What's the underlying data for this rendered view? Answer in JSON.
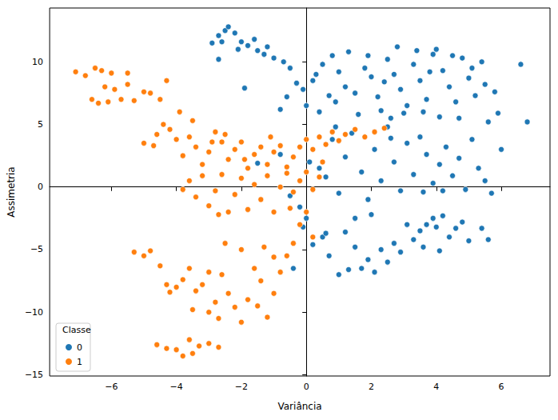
{
  "chart_data": {
    "type": "scatter",
    "x_label": "Variância",
    "y_label": "Assimetria",
    "legend_title": "Classe",
    "legend": "lower left",
    "grid": false,
    "marker": "circle",
    "xlim": [
      -7.9,
      7.5
    ],
    "ylim": [
      -15.1,
      14.3
    ],
    "xticks": [
      {
        "value": -6,
        "label": "−6"
      },
      {
        "value": -4,
        "label": "−4"
      },
      {
        "value": -2,
        "label": "−2"
      },
      0,
      2,
      4,
      6
    ],
    "yticks": [
      {
        "value": -15,
        "label": "−15"
      },
      {
        "value": -10,
        "label": "−10"
      },
      {
        "value": -5,
        "label": "−5"
      },
      0,
      5,
      10
    ],
    "series": [
      {
        "name": "0",
        "color": "#1f77b4",
        "points": [
          [
            -2.5,
            12.5
          ],
          [
            -2.4,
            12.8
          ],
          [
            -2.2,
            12.3
          ],
          [
            -2.7,
            12.1
          ],
          [
            -2.0,
            11.6
          ],
          [
            -1.8,
            11.3
          ],
          [
            -1.5,
            10.9
          ],
          [
            -1.3,
            10.6
          ],
          [
            -1.0,
            10.3
          ],
          [
            -0.7,
            10.0
          ],
          [
            -2.6,
            11.6
          ],
          [
            -2.9,
            11.5
          ],
          [
            -1.6,
            11.8
          ],
          [
            -1.2,
            11.2
          ],
          [
            -2.1,
            11.0
          ],
          [
            -2.7,
            10.2
          ],
          [
            -0.5,
            9.5
          ],
          [
            -0.3,
            8.3
          ],
          [
            -0.1,
            7.8
          ],
          [
            0.2,
            8.5
          ],
          [
            0.5,
            9.8
          ],
          [
            0.8,
            10.5
          ],
          [
            1.0,
            9.2
          ],
          [
            1.2,
            8.0
          ],
          [
            1.5,
            7.5
          ],
          [
            1.3,
            10.8
          ],
          [
            1.8,
            9.5
          ],
          [
            2.0,
            8.8
          ],
          [
            2.2,
            7.2
          ],
          [
            2.5,
            10.2
          ],
          [
            2.7,
            9.0
          ],
          [
            2.9,
            7.8
          ],
          [
            3.1,
            6.5
          ],
          [
            3.3,
            9.8
          ],
          [
            3.5,
            8.5
          ],
          [
            3.7,
            7.0
          ],
          [
            3.9,
            10.6
          ],
          [
            4.0,
            11.0
          ],
          [
            4.2,
            9.3
          ],
          [
            4.4,
            8.0
          ],
          [
            4.6,
            6.8
          ],
          [
            4.8,
            10.3
          ],
          [
            5.0,
            8.7
          ],
          [
            5.2,
            7.3
          ],
          [
            5.4,
            10.0
          ],
          [
            5.5,
            8.2
          ],
          [
            5.8,
            7.6
          ],
          [
            0.0,
            6.5
          ],
          [
            0.4,
            6.0
          ],
          [
            0.9,
            6.8
          ],
          [
            1.6,
            5.8
          ],
          [
            2.3,
            6.1
          ],
          [
            2.6,
            5.5
          ],
          [
            3.0,
            5.9
          ],
          [
            3.6,
            6.0
          ],
          [
            4.1,
            5.6
          ],
          [
            4.7,
            5.5
          ],
          [
            0.3,
            9.0
          ],
          [
            0.7,
            7.3
          ],
          [
            1.9,
            10.5
          ],
          [
            2.4,
            8.4
          ],
          [
            3.4,
            10.9
          ],
          [
            4.5,
            10.5
          ],
          [
            3.8,
            9.2
          ],
          [
            2.8,
            11.2
          ],
          [
            5.1,
            9.5
          ],
          [
            -0.6,
            7.2
          ],
          [
            -0.8,
            6.2
          ],
          [
            5.6,
            5.2
          ],
          [
            5.9,
            5.9
          ],
          [
            6.6,
            9.8
          ],
          [
            6.8,
            5.2
          ],
          [
            -1.9,
            7.9
          ],
          [
            0.1,
            2.0
          ],
          [
            0.4,
            1.5
          ],
          [
            0.6,
            0.8
          ],
          [
            0.8,
            3.8
          ],
          [
            1.0,
            -0.5
          ],
          [
            1.2,
            2.4
          ],
          [
            1.4,
            4.3
          ],
          [
            1.7,
            1.2
          ],
          [
            1.9,
            -1.0
          ],
          [
            2.1,
            3.0
          ],
          [
            2.3,
            0.5
          ],
          [
            2.5,
            4.8
          ],
          [
            2.7,
            2.0
          ],
          [
            2.9,
            -0.3
          ],
          [
            3.1,
            3.5
          ],
          [
            3.3,
            1.0
          ],
          [
            3.5,
            4.0
          ],
          [
            3.7,
            2.6
          ],
          [
            3.9,
            0.3
          ],
          [
            4.1,
            1.8
          ],
          [
            4.3,
            3.2
          ],
          [
            4.5,
            0.9
          ],
          [
            4.7,
            2.3
          ],
          [
            4.9,
            -0.2
          ],
          [
            5.1,
            3.8
          ],
          [
            5.3,
            1.5
          ],
          [
            5.5,
            0.5
          ],
          [
            2.0,
            -2.2
          ],
          [
            1.5,
            -2.5
          ],
          [
            3.6,
            -0.4
          ],
          [
            4.2,
            -0.3
          ],
          [
            5.7,
            -0.5
          ],
          [
            6.0,
            3.0
          ],
          [
            0.9,
            4.8
          ],
          [
            2.6,
            3.9
          ],
          [
            -1.5,
            1.9
          ],
          [
            -0.8,
            2.6
          ],
          [
            -0.5,
            -0.7
          ],
          [
            -0.2,
            -1.6
          ],
          [
            0.0,
            -2.5
          ],
          [
            0.2,
            -4.6
          ],
          [
            0.5,
            -4.0
          ],
          [
            0.7,
            -5.5
          ],
          [
            1.0,
            -7.0
          ],
          [
            1.2,
            -3.6
          ],
          [
            1.5,
            -4.8
          ],
          [
            1.7,
            -6.5
          ],
          [
            1.9,
            -5.8
          ],
          [
            2.1,
            -6.8
          ],
          [
            2.3,
            -5.0
          ],
          [
            2.5,
            -6.0
          ],
          [
            2.7,
            -4.5
          ],
          [
            2.9,
            -5.2
          ],
          [
            3.1,
            -3.0
          ],
          [
            3.3,
            -4.2
          ],
          [
            3.5,
            -3.5
          ],
          [
            3.7,
            -3.0
          ],
          [
            3.9,
            -2.5
          ],
          [
            4.0,
            -3.2
          ],
          [
            4.2,
            -2.3
          ],
          [
            4.4,
            -4.0
          ],
          [
            4.6,
            -3.3
          ],
          [
            4.8,
            -2.8
          ],
          [
            5.0,
            -4.3
          ],
          [
            4.1,
            -5.1
          ],
          [
            3.6,
            -4.8
          ],
          [
            5.4,
            -3.3
          ],
          [
            5.6,
            -4.2
          ],
          [
            -0.4,
            -6.5
          ],
          [
            -0.1,
            -3.2
          ],
          [
            0.6,
            -3.7
          ],
          [
            1.3,
            -6.6
          ]
        ]
      },
      {
        "name": "1",
        "color": "#ff7f0e",
        "points": [
          [
            -7.1,
            9.2
          ],
          [
            -6.8,
            8.9
          ],
          [
            -6.5,
            9.5
          ],
          [
            -6.3,
            9.3
          ],
          [
            -6.0,
            9.1
          ],
          [
            -5.5,
            9.1
          ],
          [
            -6.6,
            7.0
          ],
          [
            -6.4,
            6.7
          ],
          [
            -6.1,
            6.8
          ],
          [
            -5.7,
            7.0
          ],
          [
            -5.3,
            6.9
          ],
          [
            -5.5,
            8.2
          ],
          [
            -5.0,
            7.6
          ],
          [
            -4.8,
            7.5
          ],
          [
            -4.5,
            7.0
          ],
          [
            -6.2,
            8.0
          ],
          [
            -5.9,
            7.8
          ],
          [
            -4.3,
            8.5
          ],
          [
            -5.0,
            3.5
          ],
          [
            -4.7,
            3.3
          ],
          [
            -4.4,
            5.0
          ],
          [
            -4.2,
            4.6
          ],
          [
            -4.0,
            3.8
          ],
          [
            -3.8,
            2.5
          ],
          [
            -3.6,
            4.0
          ],
          [
            -3.4,
            3.2
          ],
          [
            -3.2,
            1.8
          ],
          [
            -3.0,
            2.8
          ],
          [
            -2.8,
            4.4
          ],
          [
            -2.6,
            3.6
          ],
          [
            -2.4,
            2.2
          ],
          [
            -2.2,
            3.0
          ],
          [
            -2.0,
            3.6
          ],
          [
            -1.8,
            1.5
          ],
          [
            -1.6,
            2.6
          ],
          [
            -1.4,
            3.2
          ],
          [
            -1.2,
            1.8
          ],
          [
            -1.0,
            2.8
          ],
          [
            -0.8,
            3.3
          ],
          [
            -0.6,
            1.6
          ],
          [
            -0.4,
            2.4
          ],
          [
            -0.2,
            3.2
          ],
          [
            0.0,
            3.8
          ],
          [
            0.2,
            3.0
          ],
          [
            0.4,
            4.0
          ],
          [
            0.6,
            3.4
          ],
          [
            0.8,
            4.4
          ],
          [
            1.0,
            3.7
          ],
          [
            1.2,
            4.2
          ],
          [
            1.5,
            4.6
          ],
          [
            1.8,
            4.0
          ],
          [
            2.1,
            4.4
          ],
          [
            2.4,
            4.7
          ],
          [
            -3.9,
            6.0
          ],
          [
            -4.6,
            4.2
          ],
          [
            -3.5,
            5.3
          ],
          [
            -2.9,
            3.6
          ],
          [
            -2.5,
            4.2
          ],
          [
            -1.9,
            2.2
          ],
          [
            -1.1,
            4.0
          ],
          [
            -3.6,
            0.5
          ],
          [
            -3.4,
            -0.8
          ],
          [
            -3.2,
            0.9
          ],
          [
            -3.0,
            -1.5
          ],
          [
            -2.8,
            -0.3
          ],
          [
            -2.6,
            1.0
          ],
          [
            -2.4,
            -2.0
          ],
          [
            -2.2,
            -0.6
          ],
          [
            -2.0,
            0.7
          ],
          [
            -1.8,
            -1.8
          ],
          [
            -1.6,
            0.2
          ],
          [
            -1.4,
            -1.0
          ],
          [
            -1.2,
            0.9
          ],
          [
            -1.0,
            -2.0
          ],
          [
            -0.8,
            0.0
          ],
          [
            -0.6,
            1.1
          ],
          [
            -0.4,
            -0.4
          ],
          [
            -0.2,
            0.5
          ],
          [
            0.0,
            1.2
          ],
          [
            0.2,
            -0.2
          ],
          [
            0.4,
            0.8
          ],
          [
            -3.8,
            -0.2
          ],
          [
            -2.7,
            -2.2
          ],
          [
            -0.5,
            -1.7
          ],
          [
            0.5,
            2.0
          ],
          [
            -5.3,
            -5.2
          ],
          [
            -5.0,
            -5.5
          ],
          [
            -4.8,
            -5.1
          ],
          [
            -4.5,
            -6.3
          ],
          [
            -4.3,
            -7.8
          ],
          [
            -4.0,
            -8.0
          ],
          [
            -3.8,
            -7.4
          ],
          [
            -3.6,
            -6.5
          ],
          [
            -3.4,
            -8.3
          ],
          [
            -3.2,
            -7.8
          ],
          [
            -3.0,
            -10.0
          ],
          [
            -2.8,
            -9.2
          ],
          [
            -2.6,
            -7.0
          ],
          [
            -2.4,
            -8.5
          ],
          [
            -2.2,
            -9.6
          ],
          [
            -2.0,
            -10.8
          ],
          [
            -1.8,
            -9.0
          ],
          [
            -1.6,
            -6.5
          ],
          [
            -1.4,
            -7.5
          ],
          [
            -1.2,
            -10.4
          ],
          [
            -1.0,
            -8.5
          ],
          [
            -0.8,
            -6.8
          ],
          [
            -0.6,
            -5.5
          ],
          [
            -0.4,
            -4.5
          ],
          [
            -0.2,
            -3.0
          ],
          [
            0.0,
            -2.0
          ],
          [
            0.2,
            -4.0
          ],
          [
            -2.5,
            -4.5
          ],
          [
            -2.0,
            -5.0
          ],
          [
            -1.3,
            -4.8
          ],
          [
            -1.0,
            -5.6
          ],
          [
            -3.0,
            -6.8
          ],
          [
            -2.7,
            -10.5
          ],
          [
            -3.5,
            -9.8
          ],
          [
            -4.2,
            -8.4
          ],
          [
            -1.5,
            -9.5
          ],
          [
            -4.6,
            -12.6
          ],
          [
            -4.3,
            -12.9
          ],
          [
            -4.0,
            -13.0
          ],
          [
            -3.8,
            -13.5
          ],
          [
            -3.5,
            -13.3
          ],
          [
            -3.3,
            -12.7
          ],
          [
            -3.0,
            -12.5
          ],
          [
            -2.7,
            -12.8
          ],
          [
            -3.6,
            -12.2
          ]
        ]
      }
    ]
  }
}
